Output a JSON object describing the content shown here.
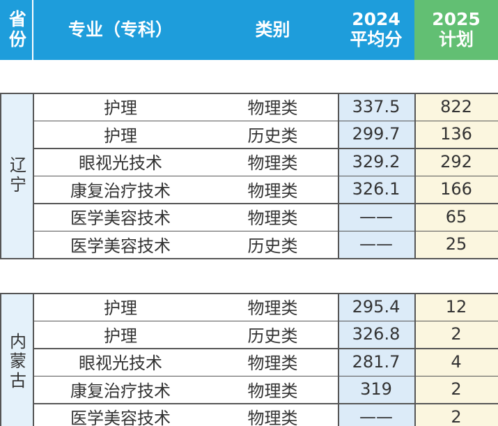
{
  "header": {
    "province": "省份",
    "major": "专业（专科）",
    "category": "类别",
    "score": [
      "2024",
      "平均分"
    ],
    "plan": [
      "2025",
      "计划"
    ]
  },
  "groups": [
    {
      "province": "辽宁",
      "rows": [
        [
          "护理",
          "物理类",
          "337.5",
          "822"
        ],
        [
          "护理",
          "历史类",
          "299.7",
          "136"
        ],
        [
          "眼视光技术",
          "物理类",
          "329.2",
          "292"
        ],
        [
          "康复治疗技术",
          "物理类",
          "326.1",
          "166"
        ],
        [
          "医学美容技术",
          "物理类",
          "——",
          "65"
        ],
        [
          "医学美容技术",
          "历史类",
          "——",
          "25"
        ]
      ]
    },
    {
      "province": "内蒙古",
      "rows": [
        [
          "护理",
          "物理类",
          "295.4",
          "12"
        ],
        [
          "护理",
          "历史类",
          "326.8",
          "2"
        ],
        [
          "眼视光技术",
          "物理类",
          "281.7",
          "4"
        ],
        [
          "康复治疗技术",
          "物理类",
          "319",
          "2"
        ],
        [
          "医学美容技术",
          "物理类",
          "——",
          "2"
        ]
      ]
    }
  ]
}
